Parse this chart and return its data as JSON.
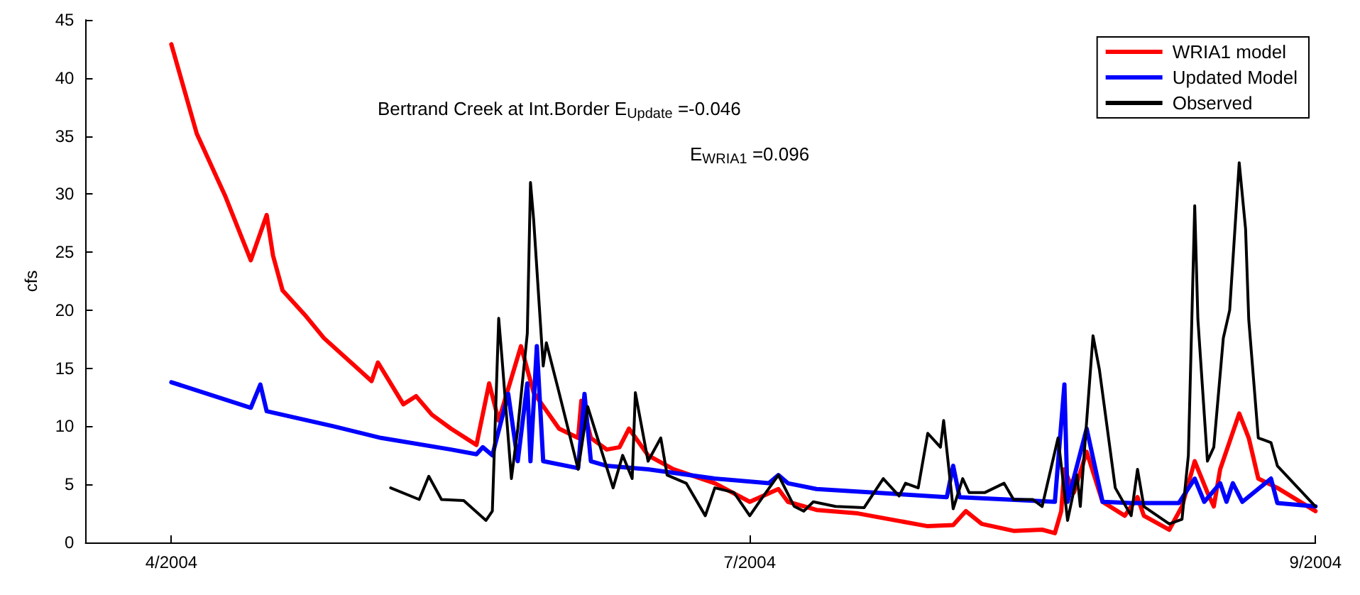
{
  "chart_data": {
    "type": "line",
    "ylabel": "cfs",
    "xlim": [
      "2004-03-18T12:00",
      "2004-09-28"
    ],
    "ylim": [
      0,
      45
    ],
    "xticks": [
      {
        "value": "2004-04-01",
        "label": "4/2004"
      },
      {
        "value": "2004-07-01",
        "label": "7/2004"
      },
      {
        "value": "2004-09-28",
        "label": "9/2004"
      }
    ],
    "yticks": [
      0,
      5,
      10,
      15,
      20,
      25,
      30,
      35,
      40,
      45
    ],
    "grid": false,
    "legend": "top right",
    "marker": "none",
    "line_style": "solid",
    "annotations": [
      "Bertrand Creek at Int.Border E$_{Update}$ =-0.046",
      "E$_{WRIA1}$ =0.096"
    ],
    "series": [
      {
        "name": "WRIA1 model",
        "color": "#ff0000",
        "x": [
          "2004-04-01",
          "2004-04-05",
          "2004-04-09T12:00",
          "2004-04-13T12:00",
          "2004-04-16",
          "2004-04-17",
          "2004-04-18T12:00",
          "2004-04-22",
          "2004-04-25",
          "2004-05-02T12:00",
          "2004-05-03T12:00",
          "2004-05-07T12:00",
          "2004-05-09T12:00",
          "2004-05-12",
          "2004-05-15",
          "2004-05-19",
          "2004-05-21",
          "2004-05-22T12:00",
          "2004-05-26",
          "2004-05-28",
          "2004-06-01",
          "2004-06-04",
          "2004-06-04T12:00",
          "2004-06-06",
          "2004-06-08T12:00",
          "2004-06-10T12:00",
          "2004-06-12",
          "2004-06-15",
          "2004-06-19",
          "2004-06-25T12:00",
          "2004-07-01",
          "2004-07-05T12:00",
          "2004-07-07",
          "2004-07-11T12:00",
          "2004-07-18",
          "2004-07-29",
          "2004-08-02",
          "2004-08-04",
          "2004-08-06T12:00",
          "2004-08-11T12:00",
          "2004-08-16",
          "2004-08-18",
          "2004-08-19",
          "2004-08-19T12:00",
          "2004-08-21",
          "2004-08-23",
          "2004-08-25T12:00",
          "2004-08-29",
          "2004-08-31",
          "2004-09-01",
          "2004-09-05",
          "2004-09-07",
          "2004-09-09",
          "2004-09-11",
          "2004-09-12",
          "2004-09-13",
          "2004-09-16",
          "2004-09-17T12:00",
          "2004-09-19",
          "2004-09-22",
          "2004-09-28"
        ],
        "values": [
          42.9,
          35.2,
          29.8,
          24.3,
          28.2,
          24.7,
          21.7,
          19.6,
          17.6,
          13.9,
          15.5,
          11.9,
          12.6,
          11,
          9.8,
          8.4,
          13.7,
          10.5,
          16.9,
          12.9,
          9.8,
          9,
          12.2,
          9,
          8,
          8.2,
          9.8,
          7.5,
          6.3,
          5.1,
          3.5,
          4.6,
          3.5,
          2.8,
          2.5,
          1.4,
          1.5,
          2.7,
          1.6,
          1,
          1.1,
          0.8,
          2.7,
          6.3,
          4.3,
          7.8,
          3.5,
          2.3,
          3.9,
          2.3,
          1.1,
          3.1,
          7,
          4.3,
          3.1,
          6.3,
          11.1,
          9,
          5.5,
          4.7,
          2.7
        ]
      },
      {
        "name": "Updated Model",
        "color": "#0000ff",
        "x": [
          "2004-04-01",
          "2004-04-13T12:00",
          "2004-04-15",
          "2004-04-16",
          "2004-04-26T12:00",
          "2004-05-04",
          "2004-05-15",
          "2004-05-19",
          "2004-05-20",
          "2004-05-21T12:00",
          "2004-05-24",
          "2004-05-25T12:00",
          "2004-05-27",
          "2004-05-27T12:00",
          "2004-05-28T12:00",
          "2004-05-29T12:00",
          "2004-06-04",
          "2004-06-05",
          "2004-06-06",
          "2004-06-08T12:00",
          "2004-06-15",
          "2004-06-25T12:00",
          "2004-07-04",
          "2004-07-05T12:00",
          "2004-07-07",
          "2004-07-11T12:00",
          "2004-08-01",
          "2004-08-02",
          "2004-08-03",
          "2004-08-18",
          "2004-08-19T12:00",
          "2004-08-20",
          "2004-08-23",
          "2004-08-25T12:00",
          "2004-08-30",
          "2004-09-06T12:00",
          "2004-09-09",
          "2004-09-10T12:00",
          "2004-09-13",
          "2004-09-14",
          "2004-09-15",
          "2004-09-16T12:00",
          "2004-09-21",
          "2004-09-22",
          "2004-09-28"
        ],
        "values": [
          13.8,
          11.6,
          13.6,
          11.3,
          10,
          9,
          8,
          7.6,
          8.2,
          7.5,
          12.8,
          7,
          13.7,
          7,
          16.9,
          7,
          6.4,
          12.8,
          7,
          6.6,
          6.3,
          5.5,
          5.1,
          5.8,
          5.1,
          4.6,
          3.9,
          6.6,
          3.9,
          3.5,
          13.6,
          3.5,
          9.8,
          3.5,
          3.4,
          3.4,
          5.5,
          3.5,
          5.1,
          3.5,
          5.1,
          3.5,
          5.5,
          3.4,
          3.1
        ]
      },
      {
        "name": "Observed",
        "color": "#000000",
        "x": [
          "2004-05-05T12:00",
          "2004-05-10",
          "2004-05-11T12:00",
          "2004-05-13T12:00",
          "2004-05-17",
          "2004-05-20T12:00",
          "2004-05-21T12:00",
          "2004-05-22T12:00",
          "2004-05-23",
          "2004-05-24T12:00",
          "2004-05-25T12:00",
          "2004-05-27",
          "2004-05-27T12:00",
          "2004-05-28",
          "2004-05-29T12:00",
          "2004-05-30",
          "2004-06-01",
          "2004-06-04",
          "2004-06-05T12:00",
          "2004-06-07T12:00",
          "2004-06-09T12:00",
          "2004-06-11",
          "2004-06-12T12:00",
          "2004-06-13",
          "2004-06-15",
          "2004-06-17",
          "2004-06-18",
          "2004-06-21",
          "2004-06-24",
          "2004-06-25T12:00",
          "2004-06-28T12:00",
          "2004-07-01",
          "2004-07-02T12:00",
          "2004-07-05T12:00",
          "2004-07-08",
          "2004-07-09T12:00",
          "2004-07-11",
          "2004-07-14T12:00",
          "2004-07-19",
          "2004-07-22",
          "2004-07-24T12:00",
          "2004-07-25T12:00",
          "2004-07-27T12:00",
          "2004-07-29",
          "2004-07-31",
          "2004-07-31T12:00",
          "2004-08-02",
          "2004-08-03T12:00",
          "2004-08-04T12:00",
          "2004-08-07",
          "2004-08-10",
          "2004-08-11T12:00",
          "2004-08-14T12:00",
          "2004-08-16",
          "2004-08-18T12:00",
          "2004-08-20",
          "2004-08-21T12:00",
          "2004-08-22",
          "2004-08-24",
          "2004-08-25",
          "2004-08-27T12:00",
          "2004-08-30",
          "2004-08-31",
          "2004-09-01",
          "2004-09-05",
          "2004-09-07",
          "2004-09-08",
          "2004-09-09",
          "2004-09-09T12:00",
          "2004-09-11",
          "2004-09-12",
          "2004-09-13T12:00",
          "2004-09-14T12:00",
          "2004-09-16",
          "2004-09-17",
          "2004-09-17T12:00",
          "2004-09-19",
          "2004-09-21",
          "2004-09-22",
          "2004-09-28"
        ],
        "values": [
          4.7,
          3.7,
          5.7,
          3.7,
          3.6,
          1.9,
          2.7,
          19.3,
          16,
          5.5,
          9.8,
          18,
          31,
          27.8,
          15.2,
          17.2,
          12.9,
          6.3,
          11.7,
          8.2,
          4.7,
          7.5,
          5.5,
          12.9,
          7,
          9,
          5.8,
          5.1,
          2.3,
          4.7,
          4.3,
          2.3,
          3.5,
          5.8,
          3.1,
          2.7,
          3.5,
          3.1,
          3,
          5.5,
          4,
          5.1,
          4.7,
          9.4,
          8.2,
          10.5,
          2.9,
          5.5,
          4.3,
          4.3,
          5.1,
          3.7,
          3.7,
          3.1,
          9,
          1.9,
          5.8,
          3.1,
          17.8,
          14.9,
          4.7,
          2.3,
          6.3,
          3.1,
          1.6,
          2,
          7.5,
          29,
          19.2,
          7,
          8.2,
          17.6,
          20,
          32.7,
          27,
          19.2,
          9,
          8.6,
          6.6,
          3.1
        ]
      }
    ]
  }
}
